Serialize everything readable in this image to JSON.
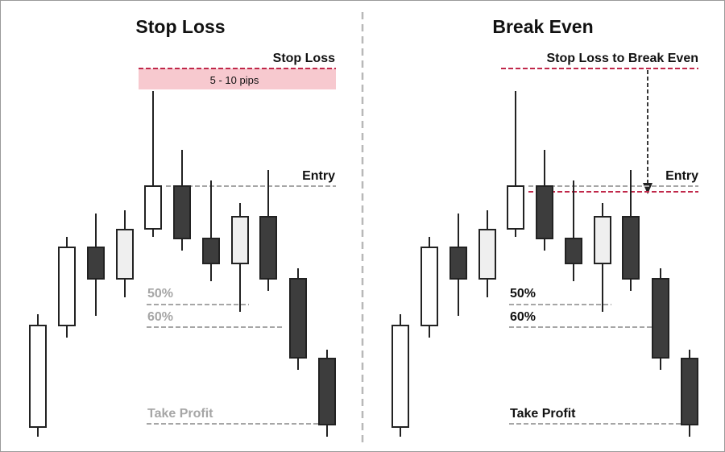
{
  "left_panel": {
    "title": "Stop Loss",
    "stop_loss_label": "Stop Loss",
    "pips_label": "5 - 10 pips",
    "entry_label": "Entry",
    "level_50_label": "50%",
    "level_60_label": "60%",
    "take_profit_label": "Take Profit"
  },
  "right_panel": {
    "title": "Break Even",
    "stop_loss_label": "Stop Loss to Break Even",
    "entry_label": "Entry",
    "level_50_label": "50%",
    "level_60_label": "60%",
    "take_profit_label": "Take Profit"
  },
  "colors": {
    "bull_body": "#ffffff",
    "neutral_body": "#efefef",
    "bear_body": "#3d3d3d",
    "stop_line": "#c0284a",
    "pips_band": "#f7c9cf",
    "level_line": "#a6a6a6",
    "divider": "#b8b8b8"
  }
}
